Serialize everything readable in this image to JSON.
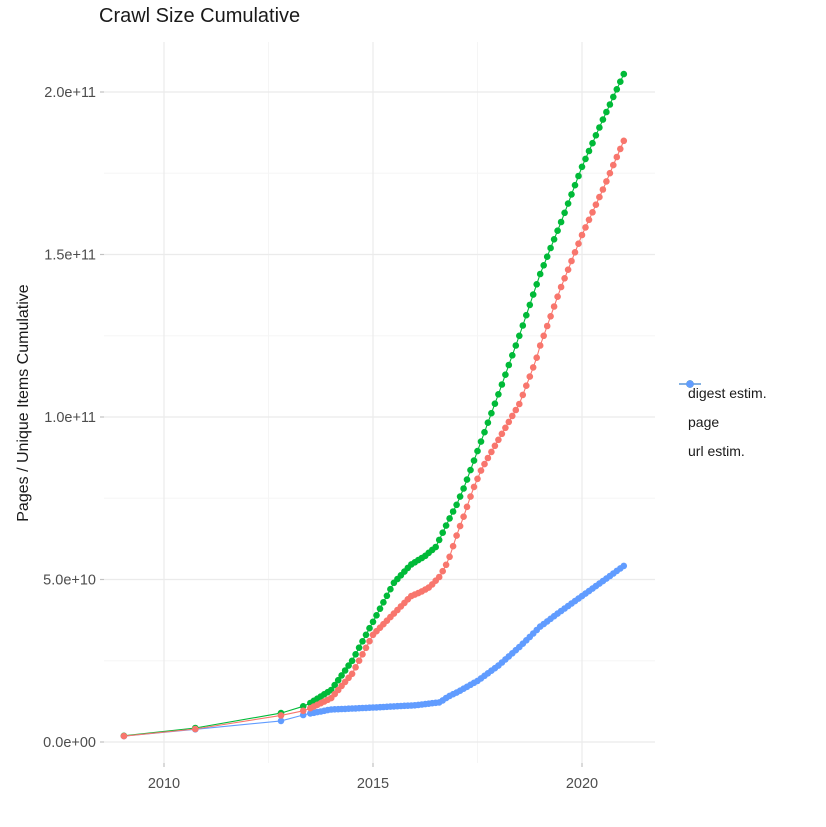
{
  "title": "Crawl Size Cumulative",
  "y_axis": {
    "title": "Pages / Unique Items Cumulative",
    "tick_labels": [
      "0.0e+00",
      "5.0e+10",
      "1.0e+11",
      "1.5e+11",
      "2.0e+11"
    ]
  },
  "x_axis": {
    "tick_labels": [
      "2010",
      "2015",
      "2020"
    ]
  },
  "legend": [
    {
      "label": "digest estim.",
      "color": "#F8766D"
    },
    {
      "label": "page",
      "color": "#00BA38"
    },
    {
      "label": "url estim.",
      "color": "#619CFF"
    }
  ],
  "colors": {
    "grid_major": "#ebebeb",
    "grid_minor": "#f5f5f5",
    "tick_mark": "#c2c2c2",
    "tick_text": "#4d4d4d",
    "title_text": "#1a1a1a"
  },
  "chart_data": {
    "type": "scatter",
    "title": "Crawl Size Cumulative",
    "xlabel": "",
    "ylabel": "Pages / Unique Items Cumulative",
    "x_range": [
      2008.5,
      2021.75
    ],
    "y_range_billions": [
      -6.5,
      215
    ],
    "value_unit": 1000000000,
    "grid": "major+minor",
    "legend_position": "right",
    "x_ticks": {
      "major": [
        2010,
        2015,
        2020
      ],
      "minor": [
        2012.5,
        2017.5
      ]
    },
    "y_ticks": {
      "major_values_billions": [
        0,
        50,
        100,
        150,
        200
      ],
      "major_labels": [
        "0.0e+00",
        "5.0e+10",
        "1.0e+11",
        "1.5e+11",
        "2.0e+11"
      ],
      "minor_values_billions": [
        25,
        75,
        125,
        175
      ]
    },
    "point_cadence": "monthly crawls from 2013.5 through 2021.0 plus sparse early crawls",
    "monthly_from": 2013.5,
    "monthly_to": 2021.0,
    "series": [
      {
        "name": "digest estim.",
        "color": "#F8766D",
        "z": 3,
        "sparse_points": [
          [
            2009.04,
            1.8
          ],
          [
            2010.75,
            4.0
          ],
          [
            2012.8,
            8.2
          ],
          [
            2013.33,
            9.6
          ]
        ],
        "trend_anchors": [
          [
            2013.5,
            10.4
          ],
          [
            2014.0,
            13.5
          ],
          [
            2014.5,
            21.0
          ],
          [
            2015.0,
            33.0
          ],
          [
            2015.5,
            39.5
          ],
          [
            2015.9,
            44.8
          ],
          [
            2016.12,
            46.0
          ],
          [
            2016.36,
            47.7
          ],
          [
            2016.6,
            51.0
          ],
          [
            2016.8,
            55.7
          ],
          [
            2017.0,
            63.5
          ],
          [
            2017.2,
            70.5
          ],
          [
            2017.4,
            78.0
          ],
          [
            2017.6,
            84.0
          ],
          [
            2018.0,
            93.0
          ],
          [
            2018.5,
            104.0
          ],
          [
            2018.9,
            117.5
          ],
          [
            2019.0,
            122.0
          ],
          [
            2019.5,
            140.0
          ],
          [
            2020.0,
            156.0
          ],
          [
            2020.5,
            170.0
          ],
          [
            2021.0,
            185.0
          ]
        ]
      },
      {
        "name": "page",
        "color": "#00BA38",
        "z": 2,
        "sparse_points": [
          [
            2009.04,
            1.9
          ],
          [
            2010.75,
            4.3
          ],
          [
            2012.8,
            8.9
          ],
          [
            2013.33,
            11.0
          ]
        ],
        "trend_anchors": [
          [
            2013.5,
            12.0
          ],
          [
            2014.0,
            16.0
          ],
          [
            2014.5,
            25.0
          ],
          [
            2015.0,
            37.0
          ],
          [
            2015.5,
            49.0
          ],
          [
            2015.9,
            54.5
          ],
          [
            2016.24,
            57.2
          ],
          [
            2016.5,
            60.0
          ],
          [
            2016.86,
            69.5
          ],
          [
            2017.0,
            73.0
          ],
          [
            2017.2,
            79.0
          ],
          [
            2017.5,
            89.5
          ],
          [
            2018.0,
            107.0
          ],
          [
            2018.5,
            125.0
          ],
          [
            2019.0,
            144.0
          ],
          [
            2019.5,
            160.0
          ],
          [
            2020.0,
            177.0
          ],
          [
            2020.5,
            191.5
          ],
          [
            2021.0,
            205.5
          ]
        ]
      },
      {
        "name": "url estim.",
        "color": "#619CFF",
        "z": 1,
        "sparse_points": [
          [
            2009.04,
            1.8
          ],
          [
            2010.75,
            3.9
          ],
          [
            2012.8,
            6.5
          ],
          [
            2013.33,
            8.3
          ]
        ],
        "trend_anchors": [
          [
            2013.5,
            8.8
          ],
          [
            2014.0,
            10.0
          ],
          [
            2015.0,
            10.6
          ],
          [
            2016.0,
            11.3
          ],
          [
            2016.6,
            12.2
          ],
          [
            2016.8,
            14.0
          ],
          [
            2017.0,
            15.2
          ],
          [
            2017.5,
            18.8
          ],
          [
            2018.0,
            23.5
          ],
          [
            2018.5,
            29.2
          ],
          [
            2019.0,
            35.5
          ],
          [
            2019.5,
            40.3
          ],
          [
            2020.0,
            44.9
          ],
          [
            2020.5,
            49.5
          ],
          [
            2021.0,
            54.2
          ]
        ]
      }
    ]
  }
}
